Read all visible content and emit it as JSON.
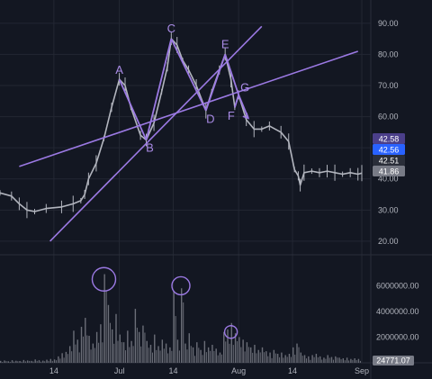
{
  "colors": {
    "background": "#131722",
    "grid": "#232733",
    "candle": "#b2b5be",
    "pattern": "#9b79e3",
    "volume": "#6b6e78",
    "tag_purple": "#4b3f8a",
    "tag_blue": "#2962ff",
    "tag_dark": "#2a2e39",
    "tag_gray": "#787b86"
  },
  "chart_data": {
    "type": "line",
    "price_axis": {
      "ticks": [
        "20.00",
        "30.00",
        "40.00",
        "50.00",
        "60.00",
        "70.00",
        "80.00",
        "90.00"
      ],
      "tick_values": [
        20,
        30,
        40,
        50,
        60,
        70,
        80,
        90
      ],
      "range": [
        16.5,
        94
      ]
    },
    "time_axis": {
      "ticks": [
        "14",
        "Jul",
        "14",
        "Aug",
        "14",
        "Sep"
      ],
      "tick_days": [
        14,
        31,
        45,
        62,
        76,
        94
      ],
      "range_days": [
        0,
        94
      ]
    },
    "volume_axis": {
      "ticks": [
        "2000000.00",
        "4000000.00",
        "6000000.00"
      ],
      "tick_values": [
        2000000,
        4000000,
        6000000
      ],
      "range": [
        0,
        8200000
      ]
    },
    "price_tags": [
      {
        "label": "42.58",
        "value": 42.58,
        "style": "purple"
      },
      {
        "label": "42.56",
        "value": 42.56,
        "style": "blue"
      },
      {
        "label": "42.51",
        "value": 42.51,
        "style": "dark"
      },
      {
        "label": "41.86",
        "value": 41.86,
        "style": "gray"
      }
    ],
    "volume_tag": {
      "label": "24771.07"
    },
    "price_series": {
      "name": "",
      "points": [
        [
          0,
          35.5
        ],
        [
          3,
          34.5
        ],
        [
          5,
          32
        ],
        [
          7,
          30
        ],
        [
          9,
          29.5
        ],
        [
          12,
          30.5
        ],
        [
          16,
          31
        ],
        [
          19,
          32
        ],
        [
          21,
          33
        ],
        [
          22,
          35
        ],
        [
          23,
          40
        ],
        [
          25,
          45
        ],
        [
          27,
          53
        ],
        [
          29,
          63
        ],
        [
          31,
          72
        ],
        [
          32.5,
          70
        ],
        [
          34,
          63
        ],
        [
          36.5,
          54
        ],
        [
          38,
          52.5
        ],
        [
          40,
          58
        ],
        [
          42,
          68
        ],
        [
          43.5,
          76
        ],
        [
          44.5,
          85
        ],
        [
          46,
          83
        ],
        [
          47.5,
          78
        ],
        [
          49,
          75
        ],
        [
          51,
          70
        ],
        [
          53.5,
          62
        ],
        [
          55,
          68
        ],
        [
          57,
          75
        ],
        [
          58.5,
          80
        ],
        [
          60,
          72
        ],
        [
          61,
          63
        ],
        [
          62,
          67
        ],
        [
          64,
          59
        ],
        [
          66,
          56
        ],
        [
          68,
          56
        ],
        [
          70,
          57
        ],
        [
          73,
          55
        ],
        [
          75,
          52
        ],
        [
          76.5,
          43
        ],
        [
          77.5,
          41
        ],
        [
          78,
          38
        ],
        [
          79,
          42
        ],
        [
          81,
          42.5
        ],
        [
          83,
          42
        ],
        [
          85,
          42.5
        ],
        [
          87,
          42
        ],
        [
          89,
          41.5
        ],
        [
          91,
          42
        ],
        [
          93,
          41.5
        ],
        [
          94,
          41.86
        ]
      ]
    },
    "volume_series": {
      "name": "",
      "values": [
        150000,
        180000,
        120000,
        200000,
        160000,
        140000,
        220000,
        180000,
        150000,
        260000,
        200000,
        170000,
        240000,
        300000,
        260000,
        500000,
        750000,
        850000,
        1300000,
        2500000,
        1800000,
        2800000,
        3500000,
        2100000,
        1500000,
        2400000,
        3000000,
        6900000,
        4500000,
        2600000,
        3800000,
        2200000,
        1600000,
        2500000,
        1700000,
        4200000,
        2400000,
        2900000,
        1700000,
        1400000,
        2200000,
        1300000,
        1800000,
        1500000,
        1200000,
        5600000,
        1800000,
        5800000,
        1500000,
        2300000,
        1200000,
        1600000,
        1000000,
        1700000,
        1200000,
        1400000,
        1100000,
        800000,
        2400000,
        2600000,
        3100000,
        2300000,
        2000000,
        1800000,
        1600000,
        1200000,
        1400000,
        1000000,
        1200000,
        900000,
        800000,
        1000000,
        700000,
        800000,
        600000,
        700000,
        1200000,
        1500000,
        800000,
        600000,
        500000,
        600000,
        700000,
        500000,
        400000,
        600000,
        450000,
        500000,
        400000,
        350000,
        400000,
        300000,
        350000,
        300000
      ]
    },
    "pattern_points": [
      {
        "label": "A",
        "day": 31,
        "price": 72
      },
      {
        "label": "B",
        "day": 38,
        "price": 52.5
      },
      {
        "label": "C",
        "day": 44.5,
        "price": 85
      },
      {
        "label": "D",
        "day": 53.5,
        "price": 62
      },
      {
        "label": "E",
        "day": 58.5,
        "price": 80
      },
      {
        "label": "F",
        "day": 61,
        "price": 63
      },
      {
        "label": "G",
        "day": 62,
        "price": 67
      }
    ],
    "pattern_label_offsets": {
      "A": [
        0,
        -6
      ],
      "B": [
        4,
        13
      ],
      "C": [
        0,
        -7
      ],
      "D": [
        5,
        14
      ],
      "E": [
        0,
        -7
      ],
      "F": [
        -4,
        14
      ],
      "G": [
        7,
        -4
      ]
    },
    "trendlines": [
      {
        "from": [
          5,
          44
        ],
        "to": [
          93,
          81
        ]
      },
      {
        "from": [
          13,
          20
        ],
        "to": [
          68,
          89
        ]
      }
    ],
    "pattern_lines": [
      {
        "from": [
          31,
          72
        ],
        "to": [
          38,
          52.5
        ]
      },
      {
        "from": [
          38,
          52.5
        ],
        "to": [
          44.5,
          85
        ]
      },
      {
        "from": [
          44.5,
          85
        ],
        "to": [
          53.5,
          62
        ]
      },
      {
        "from": [
          53.5,
          62
        ],
        "to": [
          58.5,
          80
        ]
      },
      {
        "from": [
          58.5,
          80
        ],
        "to": [
          62,
          67
        ]
      },
      {
        "from": [
          61,
          63
        ],
        "to": [
          62,
          67
        ]
      },
      {
        "from": [
          62,
          67
        ],
        "to": [
          64.5,
          59.5
        ]
      }
    ],
    "volume_circles": [
      {
        "day": 27,
        "volume": 6500000,
        "r": 13
      },
      {
        "day": 47,
        "volume": 6000000,
        "r": 10
      },
      {
        "day": 60,
        "volume": 2400000,
        "r": 7
      }
    ]
  }
}
